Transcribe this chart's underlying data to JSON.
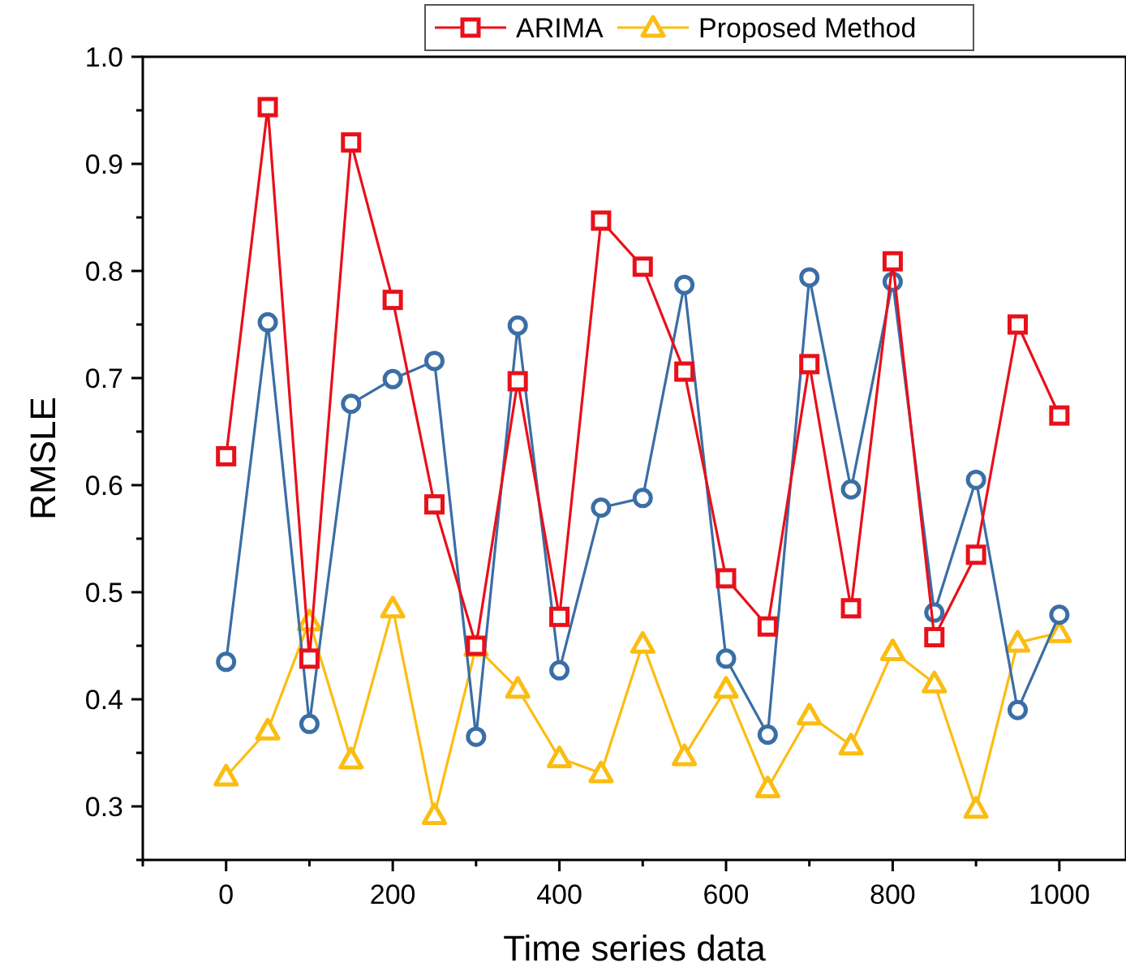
{
  "chart_data": {
    "type": "line",
    "xlabel": "Time series data",
    "ylabel": "RMSLE",
    "x": [
      0,
      50,
      100,
      150,
      200,
      250,
      300,
      350,
      400,
      450,
      500,
      550,
      600,
      650,
      700,
      750,
      800,
      850,
      900,
      950,
      1000
    ],
    "xlim": [
      -100,
      1080
    ],
    "xticks": [
      {
        "value": -100,
        "label": null
      },
      0,
      {
        "value": 100,
        "label": null
      },
      200,
      {
        "value": 300,
        "label": null
      },
      400,
      {
        "value": 500,
        "label": null
      },
      600,
      {
        "value": 700,
        "label": null
      },
      800,
      {
        "value": 900,
        "label": null
      },
      1000
    ],
    "ylim": [
      0.25,
      1.0
    ],
    "yticks": [
      {
        "value": 0.25,
        "label": null
      },
      0.3,
      {
        "value": 0.35,
        "label": null
      },
      0.4,
      {
        "value": 0.45,
        "label": null
      },
      0.5,
      {
        "value": 0.55,
        "label": null
      },
      0.6,
      {
        "value": 0.65,
        "label": null
      },
      0.7,
      {
        "value": 0.75,
        "label": null
      },
      0.8,
      {
        "value": 0.85,
        "label": null
      },
      0.9,
      {
        "value": 0.95,
        "label": null
      },
      {
        "value": 1.0,
        "label": "1.0"
      }
    ],
    "legend": "top",
    "grid": false,
    "series": [
      {
        "name": "ARIMA",
        "color": "#e8101a",
        "marker": "square",
        "values": [
          0.627,
          0.953,
          0.438,
          0.92,
          0.773,
          0.582,
          0.45,
          0.697,
          0.477,
          0.847,
          0.804,
          0.706,
          0.513,
          0.468,
          0.713,
          0.485,
          0.809,
          0.458,
          0.535,
          0.75,
          0.665
        ]
      },
      {
        "color": "#3a6ea5",
        "marker": "circle",
        "values": [
          0.435,
          0.752,
          0.377,
          0.676,
          0.699,
          0.716,
          0.365,
          0.749,
          0.427,
          0.579,
          0.588,
          0.787,
          0.438,
          0.367,
          0.794,
          0.596,
          0.79,
          0.481,
          0.605,
          0.39,
          0.479
        ]
      },
      {
        "name": "Proposed Method",
        "color": "#fbbd12",
        "marker": "triangle",
        "values": [
          0.328,
          0.371,
          0.473,
          0.344,
          0.485,
          0.292,
          0.449,
          0.41,
          0.345,
          0.331,
          0.452,
          0.347,
          0.41,
          0.317,
          0.385,
          0.357,
          0.445,
          0.415,
          0.298,
          0.453,
          0.462
        ]
      }
    ]
  }
}
